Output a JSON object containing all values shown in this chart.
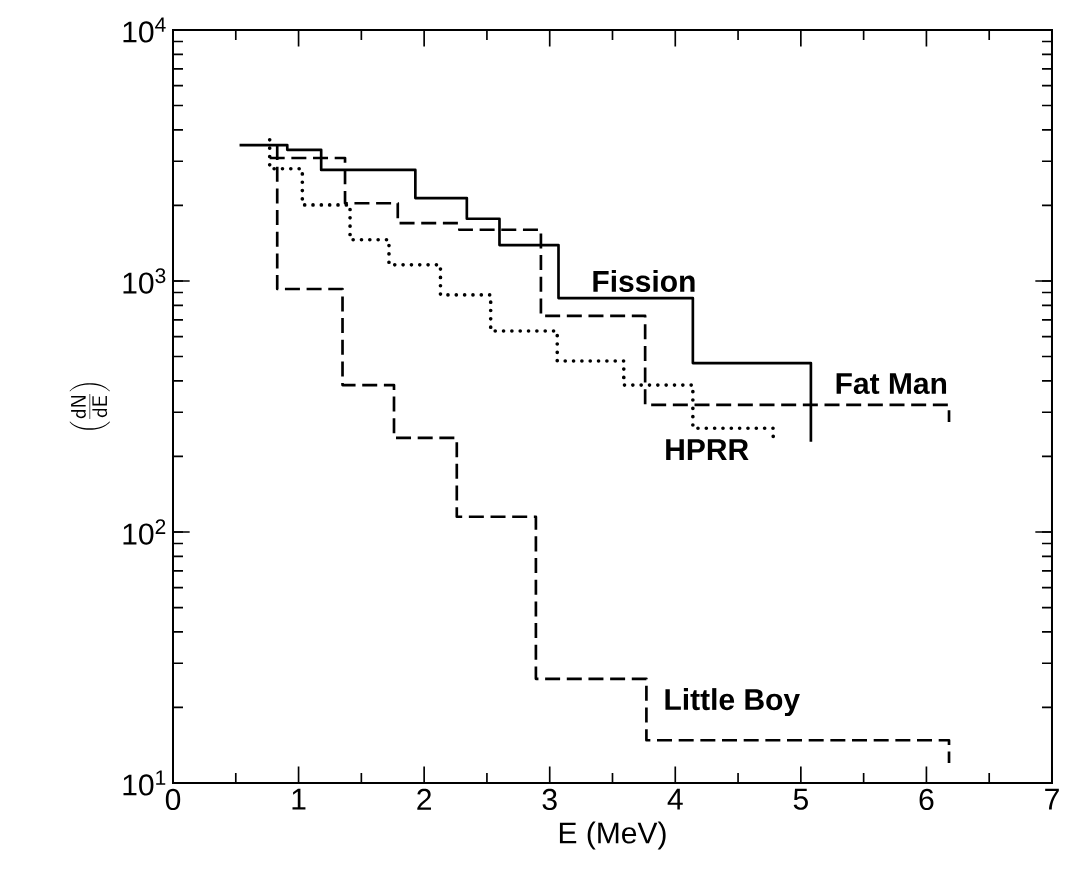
{
  "chart_data": {
    "type": "step",
    "xlabel": "E (MeV)",
    "ylabel": "\\left(\\frac{\\mathsf{dN}}{\\mathsf{dE}}\\right)",
    "log": "y",
    "xlim": [
      0,
      7
    ],
    "xticks": [
      0,
      1,
      2,
      3,
      4,
      5,
      6,
      7
    ],
    "ylim": [
      10,
      10000
    ],
    "yticks": [
      {
        "value": 10,
        "label": "10$^{1}$"
      },
      {
        "value": 100,
        "label": "10$^{2}$"
      },
      {
        "value": 1000,
        "label": "10$^{3}$"
      },
      {
        "value": 10000,
        "label": "10$^{4}$"
      }
    ],
    "series": [
      {
        "name": "Fission",
        "color": "#000000",
        "line_style": "solid",
        "x": [
          0.53,
          0.91,
          1.18,
          1.93,
          2.34,
          2.6,
          3.07,
          4.14,
          5.08
        ],
        "values": [
          3480,
          3330,
          2770,
          2140,
          1770,
          1390,
          855,
          471,
          229
        ]
      },
      {
        "name": "Fat Man",
        "color": "#000000",
        "line_style": "dashed",
        "x": [
          0.77,
          1.37,
          1.79,
          2.28,
          2.93,
          3.76,
          6.18
        ],
        "values": [
          3090,
          2040,
          1700,
          1600,
          726,
          321,
          274
        ]
      },
      {
        "name": "HPRR",
        "color": "#000000",
        "line_style": "dotted",
        "x": [
          0.77,
          0.77,
          1.03,
          1.41,
          1.72,
          2.13,
          2.53,
          3.06,
          3.59,
          4.14,
          4.78
        ],
        "values": [
          3650,
          2800,
          2010,
          1460,
          1160,
          880,
          632,
          480,
          385,
          259,
          229
        ]
      },
      {
        "name": "Little Boy",
        "color": "#000000",
        "line_style": "dashed",
        "x": [
          0.83,
          0.83,
          1.35,
          1.76,
          2.26,
          2.89,
          3.77,
          6.18
        ],
        "values": [
          3480,
          929,
          385,
          237,
          115,
          26,
          14.8,
          12
        ]
      }
    ]
  }
}
